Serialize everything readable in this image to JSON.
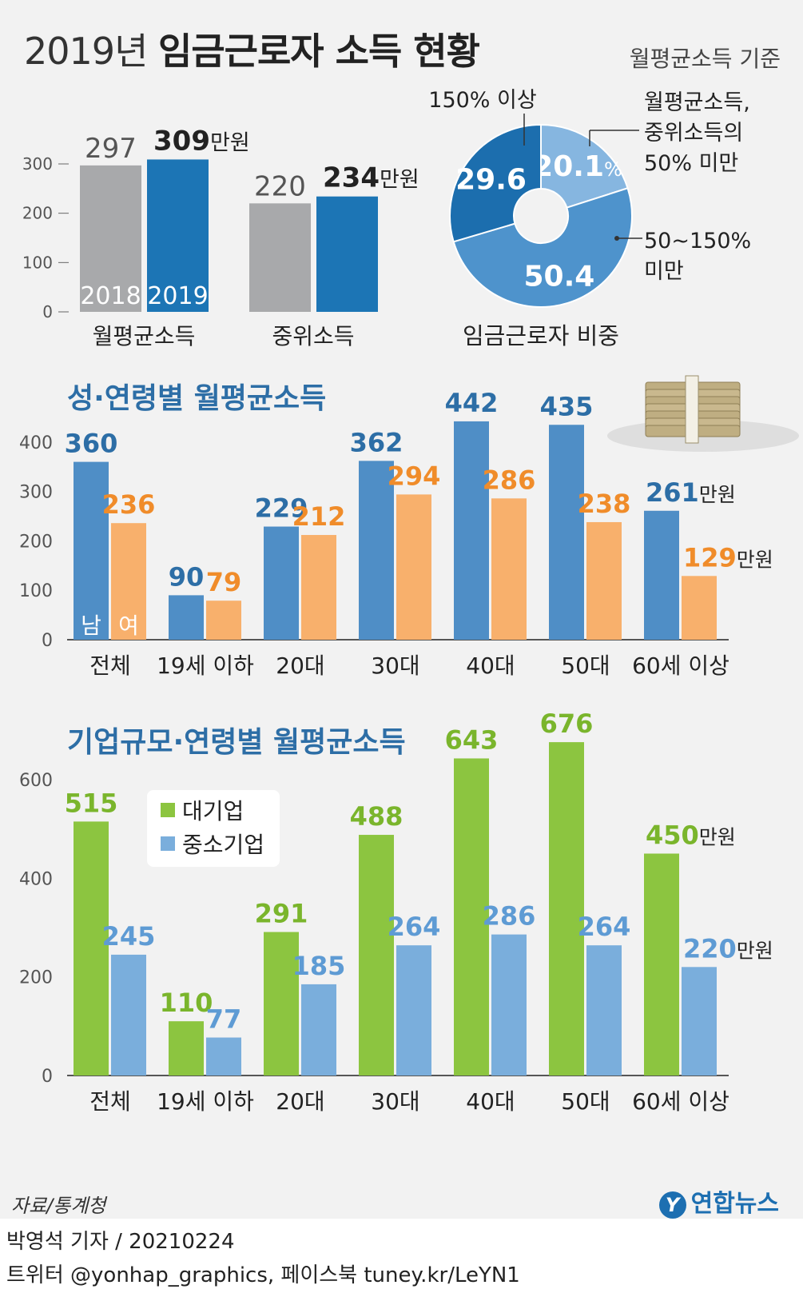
{
  "header": {
    "title_year": "2019년",
    "title_main": "임금근로자 소득 현황",
    "basis": "월평균소득 기준"
  },
  "colors": {
    "gray": "#a8a9ab",
    "blue_dark": "#1c75b5",
    "male": "#4f8ec6",
    "female": "#f8b06c",
    "large": "#8cc540",
    "small": "#7aaedc",
    "pie_light": "#86b6e0",
    "pie_mid": "#4e93cc",
    "pie_dark": "#1c6eae",
    "title_blue": "#2d6ea6"
  },
  "chart_data": [
    {
      "id": "income-overview",
      "type": "bar",
      "categories": [
        "월평균소득",
        "중위소득"
      ],
      "series": [
        {
          "name": "2018",
          "values": [
            297,
            220
          ]
        },
        {
          "name": "2019",
          "values": [
            309,
            234
          ]
        }
      ],
      "value_labels": [
        "297",
        "309",
        "220",
        "234"
      ],
      "unit": "만원",
      "yticks": [
        0,
        100,
        200,
        300
      ],
      "ylim": [
        0,
        340
      ]
    },
    {
      "id": "worker-share",
      "type": "pie",
      "title": "임금근로자 비중",
      "slices": [
        {
          "label": "월평균소득, 중위소득의 50% 미만",
          "value": 20.1,
          "display": "20.1",
          "suffix": "%"
        },
        {
          "label": "50~150% 미만",
          "value": 50.4,
          "display": "50.4"
        },
        {
          "label": "150% 이상",
          "value": 29.6,
          "display": "29.6"
        }
      ],
      "label_lines": {
        "a": [
          "월평균소득,",
          "중위소득의",
          "50% 미만"
        ],
        "b": [
          "50~150%",
          "미만"
        ],
        "c": [
          "150% 이상"
        ]
      }
    },
    {
      "id": "gender-age",
      "type": "bar",
      "title": "성·연령별 월평균소득",
      "categories": [
        "전체",
        "19세 이하",
        "20대",
        "30대",
        "40대",
        "50대",
        "60세 이상"
      ],
      "series": [
        {
          "name": "남",
          "values": [
            360,
            90,
            229,
            362,
            442,
            435,
            261
          ]
        },
        {
          "name": "여",
          "values": [
            236,
            79,
            212,
            294,
            286,
            238,
            129
          ]
        }
      ],
      "unit": "만원",
      "yticks": [
        0,
        100,
        200,
        300,
        400
      ],
      "ylim": [
        0,
        450
      ]
    },
    {
      "id": "firm-age",
      "type": "bar",
      "title": "기업규모·연령별 월평균소득",
      "categories": [
        "전체",
        "19세 이하",
        "20대",
        "30대",
        "40대",
        "50대",
        "60세 이상"
      ],
      "series": [
        {
          "name": "대기업",
          "values": [
            515,
            110,
            291,
            488,
            643,
            676,
            450
          ]
        },
        {
          "name": "중소기업",
          "values": [
            245,
            77,
            185,
            264,
            286,
            264,
            220
          ]
        }
      ],
      "unit": "만원",
      "yticks": [
        0,
        200,
        400,
        600
      ],
      "ylim": [
        0,
        700
      ],
      "legend": "top-left"
    }
  ],
  "footer": {
    "source": "자료/통계청",
    "logo": "연합뉴스",
    "logo_mark": "Y",
    "byline": "박영석 기자 /  20210224",
    "social": "트위터 @yonhap_graphics, 페이스북 tuney.kr/LeYN1"
  }
}
